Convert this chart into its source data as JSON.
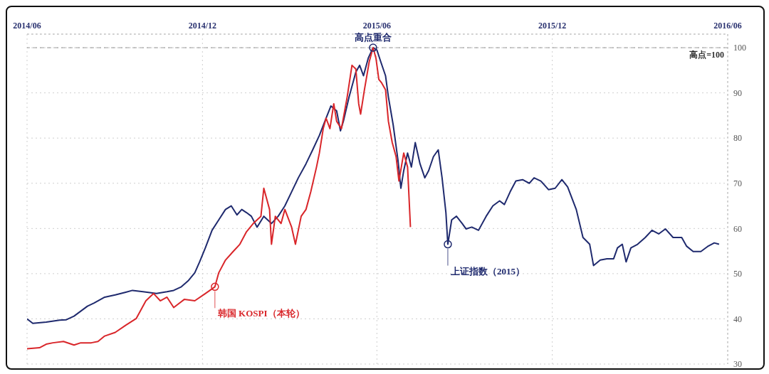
{
  "chart_data": {
    "type": "line",
    "xlim": [
      "2014-06-01",
      "2016-06-01"
    ],
    "xticks": [
      {
        "value": "2014-06-01",
        "label": "2014/06"
      },
      {
        "value": "2014-12-01",
        "label": "2014/12"
      },
      {
        "value": "2015-06-01",
        "label": "2015/06"
      },
      {
        "value": "2015-12-01",
        "label": "2015/12"
      },
      {
        "value": "2016-06-01",
        "label": "2016/06"
      }
    ],
    "ylim": [
      30,
      103
    ],
    "yticks": [
      30,
      40,
      50,
      60,
      70,
      80,
      90,
      100
    ],
    "grid": true,
    "ref_lines": [
      {
        "axis": "y",
        "value": 100,
        "label": "高点=100",
        "line_style": "dashed",
        "color": "#9a9a9a"
      }
    ],
    "annotations": [
      {
        "text": "高点重合",
        "x": "2015-05-28",
        "y": 100
      },
      {
        "text": "上证指数（2015）",
        "x": "2015-08-14",
        "y": 56.5
      },
      {
        "text": "韩国 KOSPI（本轮）",
        "x": "2014-12-14",
        "y": 47.1
      }
    ],
    "series": [
      {
        "color": "#1f2a6e",
        "x": [
          "2014-06-01",
          "2014-06-07",
          "2014-06-21",
          "2014-07-05",
          "2014-07-12",
          "2014-07-20",
          "2014-07-27",
          "2014-08-03",
          "2014-08-10",
          "2014-08-21",
          "2014-09-01",
          "2014-09-12",
          "2014-09-19",
          "2014-09-30",
          "2014-10-14",
          "2014-10-25",
          "2014-11-01",
          "2014-11-09",
          "2014-11-16",
          "2014-11-23",
          "2014-11-28",
          "2014-12-04",
          "2014-12-11",
          "2014-12-18",
          "2014-12-25",
          "2014-12-31",
          "2015-01-06",
          "2015-01-11",
          "2015-01-16",
          "2015-01-21",
          "2015-01-27",
          "2015-02-03",
          "2015-02-11",
          "2015-02-18",
          "2015-02-25",
          "2015-03-04",
          "2015-03-11",
          "2015-03-19",
          "2015-03-26",
          "2015-04-02",
          "2015-04-09",
          "2015-04-14",
          "2015-04-20",
          "2015-04-24",
          "2015-04-27",
          "2015-05-03",
          "2015-05-10",
          "2015-05-14",
          "2015-05-18",
          "2015-05-23",
          "2015-05-28",
          "2015-06-01",
          "2015-06-05",
          "2015-06-10",
          "2015-06-13",
          "2015-06-18",
          "2015-06-23",
          "2015-06-26",
          "2015-06-29",
          "2015-07-03",
          "2015-07-07",
          "2015-07-11",
          "2015-07-16",
          "2015-07-21",
          "2015-07-25",
          "2015-07-30",
          "2015-08-04",
          "2015-08-08",
          "2015-08-12",
          "2015-08-14",
          "2015-08-18",
          "2015-08-23",
          "2015-08-29",
          "2015-09-02",
          "2015-09-08",
          "2015-09-15",
          "2015-09-23",
          "2015-09-30",
          "2015-10-07",
          "2015-10-12",
          "2015-10-18",
          "2015-10-24",
          "2015-10-31",
          "2015-11-07",
          "2015-11-12",
          "2015-11-19",
          "2015-11-27",
          "2015-12-04",
          "2015-12-11",
          "2015-12-17",
          "2015-12-26",
          "2016-01-02",
          "2016-01-09",
          "2016-01-13",
          "2016-01-20",
          "2016-01-27",
          "2016-02-03",
          "2016-02-07",
          "2016-02-12",
          "2016-02-16",
          "2016-02-21",
          "2016-02-28",
          "2016-03-07",
          "2016-03-14",
          "2016-03-21",
          "2016-03-28",
          "2016-04-05",
          "2016-04-14",
          "2016-04-19",
          "2016-04-26",
          "2016-05-04",
          "2016-05-11",
          "2016-05-18",
          "2016-05-23"
        ],
        "values": [
          40.0,
          39.0,
          39.3,
          39.7,
          39.8,
          40.6,
          41.7,
          42.8,
          43.5,
          44.8,
          45.3,
          45.9,
          46.3,
          46.0,
          45.6,
          46.0,
          46.3,
          47.1,
          48.4,
          50.2,
          52.6,
          55.7,
          59.6,
          61.9,
          64.2,
          65.0,
          63.0,
          64.2,
          63.5,
          62.7,
          60.3,
          62.7,
          61.1,
          62.7,
          65.0,
          68.1,
          71.2,
          74.3,
          77.4,
          80.6,
          84.4,
          87.1,
          86.0,
          81.6,
          83.7,
          89.1,
          94.6,
          96.1,
          93.8,
          97.7,
          100,
          99.5,
          96.9,
          93.8,
          89.1,
          82.9,
          75.1,
          68.9,
          72.8,
          76.7,
          73.6,
          79.0,
          74.3,
          71.2,
          72.8,
          75.9,
          77.4,
          71.2,
          63.5,
          56.5,
          61.9,
          62.7,
          61.1,
          59.9,
          60.3,
          59.6,
          62.7,
          65.0,
          66.1,
          65.3,
          68.1,
          70.5,
          70.8,
          70.0,
          71.2,
          70.5,
          68.6,
          68.9,
          70.8,
          69.2,
          64.2,
          58.0,
          56.5,
          51.8,
          53.0,
          53.3,
          53.3,
          55.7,
          56.5,
          52.6,
          55.7,
          56.5,
          58.0,
          59.6,
          58.8,
          59.9,
          58.0,
          58.0,
          56.1,
          54.9,
          54.9,
          56.0,
          56.8,
          56.5
        ]
      },
      {
        "color": "#d9262a",
        "x": [
          "2014-06-01",
          "2014-06-14",
          "2014-06-21",
          "2014-06-28",
          "2014-07-09",
          "2014-07-20",
          "2014-07-27",
          "2014-08-07",
          "2014-08-14",
          "2014-08-21",
          "2014-09-01",
          "2014-09-12",
          "2014-09-23",
          "2014-10-03",
          "2014-10-11",
          "2014-10-18",
          "2014-10-25",
          "2014-11-01",
          "2014-11-12",
          "2014-11-23",
          "2014-12-04",
          "2014-12-14",
          "2014-12-18",
          "2014-12-25",
          "2015-01-02",
          "2015-01-09",
          "2015-01-16",
          "2015-01-23",
          "2015-01-31",
          "2015-02-03",
          "2015-02-09",
          "2015-02-11",
          "2015-02-15",
          "2015-02-21",
          "2015-02-25",
          "2015-03-04",
          "2015-03-08",
          "2015-03-14",
          "2015-03-19",
          "2015-03-24",
          "2015-03-30",
          "2015-04-02",
          "2015-04-06",
          "2015-04-09",
          "2015-04-13",
          "2015-04-17",
          "2015-04-20",
          "2015-04-25",
          "2015-05-01",
          "2015-05-06",
          "2015-05-10",
          "2015-05-13",
          "2015-05-15",
          "2015-05-19",
          "2015-05-24",
          "2015-05-28",
          "2015-05-31",
          "2015-06-03",
          "2015-06-06",
          "2015-06-10",
          "2015-06-13",
          "2015-06-17",
          "2015-06-21",
          "2015-06-24",
          "2015-06-29",
          "2015-07-03",
          "2015-07-06"
        ],
        "values": [
          33.4,
          33.6,
          34.4,
          34.7,
          35.0,
          34.2,
          34.7,
          34.7,
          35.0,
          36.2,
          37.0,
          38.6,
          40.1,
          44.0,
          45.6,
          44.0,
          44.8,
          42.5,
          44.3,
          44.0,
          45.6,
          47.1,
          50.2,
          53.0,
          54.9,
          56.5,
          59.3,
          61.1,
          62.7,
          68.9,
          64.2,
          56.5,
          62.7,
          61.1,
          64.2,
          60.3,
          56.5,
          62.7,
          64.2,
          68.1,
          73.6,
          76.7,
          82.1,
          84.4,
          82.1,
          87.6,
          83.7,
          82.1,
          89.1,
          96.1,
          95.3,
          87.6,
          85.3,
          90.7,
          96.9,
          100,
          97.7,
          93.0,
          92.2,
          90.7,
          83.7,
          79.0,
          75.9,
          70.5,
          76.7,
          73.6,
          60.3
        ]
      }
    ]
  }
}
